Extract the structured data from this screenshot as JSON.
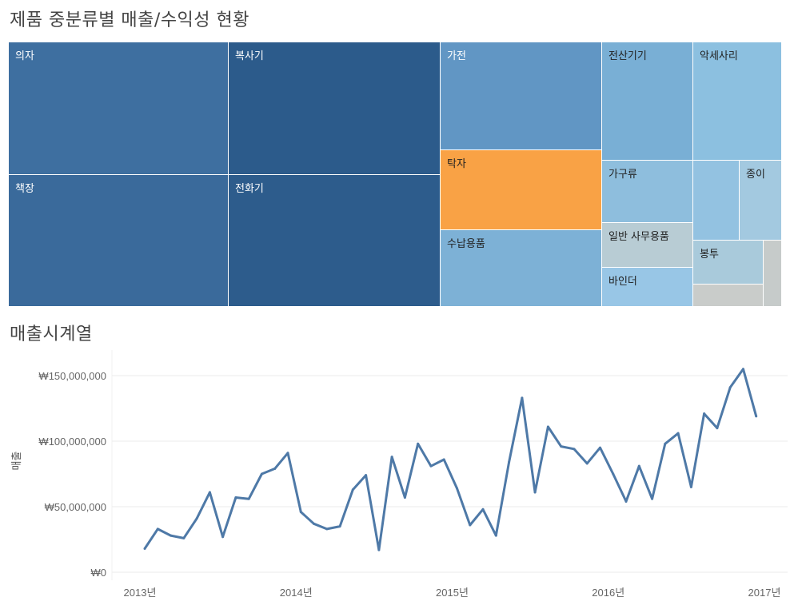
{
  "treemap": {
    "title": "제품 중분류별 매출/수익성 현황",
    "colors": {
      "dark1": "#4474a2",
      "dark2": "#2c5a8b",
      "mid": "#6196c4",
      "light1": "#7db1d6",
      "light2": "#90c0e0",
      "light3": "#a3c7dd",
      "gray": "#b9cbd2",
      "gray2": "#c9cdcc",
      "orange": "#f9a245"
    },
    "tiles": [
      {
        "label": "의자",
        "color": "#3e6fa0",
        "text": "dark"
      },
      {
        "label": "복사기",
        "color": "#2c5b8b",
        "text": "dark"
      },
      {
        "label": "책장",
        "color": "#3a6a9b",
        "text": "dark"
      },
      {
        "label": "전화기",
        "color": "#2d5c8c",
        "text": "dark"
      },
      {
        "label": "가전",
        "color": "#6196c4",
        "text": "dark"
      },
      {
        "label": "탁자",
        "color": "#f9a245",
        "text": "light"
      },
      {
        "label": "수납용품",
        "color": "#7db1d6",
        "text": "light"
      },
      {
        "label": "전산기기",
        "color": "#79afd5",
        "text": "light"
      },
      {
        "label": "악세사리",
        "color": "#8cc0e0",
        "text": "light"
      },
      {
        "label": "가구류",
        "color": "#8ebedd",
        "text": "light"
      },
      {
        "label": "",
        "color": "#93c2e1",
        "text": "light"
      },
      {
        "label": "종이",
        "color": "#a3c9e0",
        "text": "light"
      },
      {
        "label": "일반 사무용품",
        "color": "#b8ccd4",
        "text": "light"
      },
      {
        "label": "봉투",
        "color": "#a9cadb",
        "text": "light"
      },
      {
        "label": "",
        "color": "#c6cbca",
        "text": "light"
      },
      {
        "label": "바인더",
        "color": "#98c6e6",
        "text": "light"
      },
      {
        "label": "",
        "color": "#c9ccca",
        "text": "light"
      }
    ]
  },
  "timeseries": {
    "title": "매출시계열",
    "line_color": "#4e79a7"
  },
  "chart_data": {
    "type": "line",
    "title": "매출시계열",
    "xlabel": "",
    "ylabel": "매출",
    "ylim": [
      0,
      165000000
    ],
    "xlim": [
      "2013-01",
      "2017-01"
    ],
    "y_ticks": [
      {
        "value": 0,
        "label": "₩0"
      },
      {
        "value": 50000000,
        "label": "₩50,000,000"
      },
      {
        "value": 100000000,
        "label": "₩100,000,000"
      },
      {
        "value": 150000000,
        "label": "₩150,000,000"
      }
    ],
    "x_ticks": [
      "2013년",
      "2014년",
      "2015년",
      "2016년",
      "2017년"
    ],
    "grid": true,
    "series": [
      {
        "x": [
          "2013-01",
          "2013-02",
          "2013-03",
          "2013-04",
          "2013-05",
          "2013-06",
          "2013-07",
          "2013-08",
          "2013-09",
          "2013-10",
          "2013-11",
          "2013-12",
          "2014-01",
          "2014-02",
          "2014-03",
          "2014-04",
          "2014-05",
          "2014-06",
          "2014-07",
          "2014-08",
          "2014-09",
          "2014-10",
          "2014-11",
          "2014-12",
          "2015-01",
          "2015-02",
          "2015-03",
          "2015-04",
          "2015-05",
          "2015-06",
          "2015-07",
          "2015-08",
          "2015-09",
          "2015-10",
          "2015-11",
          "2015-12",
          "2016-01",
          "2016-02",
          "2016-03",
          "2016-04",
          "2016-05",
          "2016-06",
          "2016-07",
          "2016-08",
          "2016-09",
          "2016-10",
          "2016-11",
          "2016-12"
        ],
        "values": [
          18000000,
          33000000,
          28000000,
          26000000,
          41000000,
          61000000,
          27000000,
          57000000,
          56000000,
          75000000,
          79000000,
          91000000,
          46000000,
          37000000,
          33000000,
          35000000,
          63000000,
          74000000,
          17000000,
          88000000,
          57000000,
          98000000,
          81000000,
          86000000,
          64000000,
          36000000,
          48000000,
          28000000,
          84000000,
          133000000,
          61000000,
          111000000,
          96000000,
          94000000,
          83000000,
          95000000,
          75000000,
          54000000,
          81000000,
          56000000,
          98000000,
          106000000,
          65000000,
          121000000,
          110000000,
          141000000,
          155000000,
          119000000
        ]
      }
    ]
  }
}
